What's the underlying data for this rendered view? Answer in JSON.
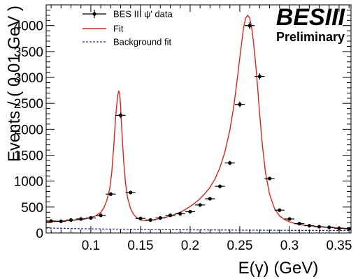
{
  "chart_data": {
    "type": "scatter",
    "xlabel": "E(γ) (GeV)",
    "ylabel": "Events / ( 0.01 GeV )",
    "xlim": [
      0.055,
      0.362
    ],
    "ylim": [
      0,
      4400
    ],
    "xticks": [
      0.1,
      0.15,
      0.2,
      0.25,
      0.3,
      0.35
    ],
    "xtick_labels": [
      "0.1",
      "0.15",
      "0.2",
      "0.25",
      "0.3",
      "0.35"
    ],
    "yticks": [
      0,
      500,
      1000,
      1500,
      2000,
      2500,
      3000,
      3500,
      4000
    ],
    "ytick_labels": [
      "0",
      "500",
      "1000",
      "1500",
      "2000",
      "2500",
      "3000",
      "3500",
      "4000"
    ],
    "grid": false,
    "legend_position": "top-left",
    "brand": {
      "title": "BESIII",
      "subtitle": "Preliminary"
    },
    "series": [
      {
        "name": "BES III ψ' data",
        "kind": "points-with-errorbars",
        "color": "#000000",
        "x_halfwidth": 0.005,
        "x": [
          0.06,
          0.07,
          0.08,
          0.09,
          0.1,
          0.11,
          0.12,
          0.13,
          0.14,
          0.15,
          0.16,
          0.17,
          0.18,
          0.19,
          0.2,
          0.21,
          0.22,
          0.23,
          0.24,
          0.25,
          0.26,
          0.27,
          0.28,
          0.29,
          0.3,
          0.31,
          0.32,
          0.33,
          0.34,
          0.35,
          0.36
        ],
        "y": [
          230,
          225,
          250,
          270,
          290,
          340,
          750,
          2270,
          780,
          280,
          250,
          290,
          340,
          370,
          410,
          540,
          660,
          900,
          1350,
          2480,
          4000,
          3020,
          1050,
          440,
          270,
          180,
          140,
          120,
          110,
          90,
          80
        ],
        "yerr": [
          20,
          20,
          20,
          20,
          20,
          25,
          30,
          50,
          30,
          20,
          20,
          20,
          20,
          20,
          25,
          25,
          30,
          35,
          40,
          55,
          65,
          60,
          35,
          25,
          20,
          15,
          15,
          12,
          12,
          10,
          10
        ]
      },
      {
        "name": "Fit",
        "kind": "line",
        "color": "#e02020",
        "x": [
          0.055,
          0.06,
          0.065,
          0.07,
          0.075,
          0.08,
          0.085,
          0.09,
          0.095,
          0.1,
          0.105,
          0.11,
          0.113,
          0.116,
          0.119,
          0.121,
          0.123,
          0.125,
          0.127,
          0.128,
          0.129,
          0.13,
          0.131,
          0.133,
          0.135,
          0.137,
          0.14,
          0.143,
          0.146,
          0.15,
          0.155,
          0.16,
          0.165,
          0.17,
          0.175,
          0.18,
          0.185,
          0.19,
          0.195,
          0.2,
          0.205,
          0.21,
          0.215,
          0.22,
          0.225,
          0.23,
          0.235,
          0.24,
          0.244,
          0.248,
          0.251,
          0.254,
          0.256,
          0.258,
          0.26,
          0.262,
          0.264,
          0.266,
          0.268,
          0.27,
          0.273,
          0.276,
          0.28,
          0.285,
          0.29,
          0.295,
          0.3,
          0.305,
          0.31,
          0.315,
          0.32,
          0.33,
          0.34,
          0.35,
          0.36
        ],
        "y": [
          210,
          215,
          220,
          228,
          235,
          243,
          252,
          262,
          275,
          295,
          330,
          400,
          480,
          620,
          850,
          1150,
          1650,
          2250,
          2650,
          2740,
          2700,
          2450,
          2050,
          1400,
          950,
          680,
          470,
          360,
          300,
          250,
          240,
          245,
          260,
          280,
          300,
          330,
          360,
          400,
          450,
          510,
          580,
          660,
          760,
          880,
          1040,
          1260,
          1560,
          1980,
          2450,
          3050,
          3550,
          3980,
          4150,
          4200,
          4150,
          3950,
          3650,
          3250,
          2800,
          2300,
          1650,
          1150,
          750,
          470,
          330,
          260,
          215,
          185,
          165,
          150,
          140,
          120,
          105,
          95,
          85
        ]
      },
      {
        "name": "Background fit",
        "kind": "dashed-line",
        "color": "#2030c8",
        "x": [
          0.055,
          0.1,
          0.15,
          0.2,
          0.25,
          0.3,
          0.36
        ],
        "y": [
          95,
          80,
          70,
          60,
          55,
          50,
          48
        ]
      }
    ]
  }
}
